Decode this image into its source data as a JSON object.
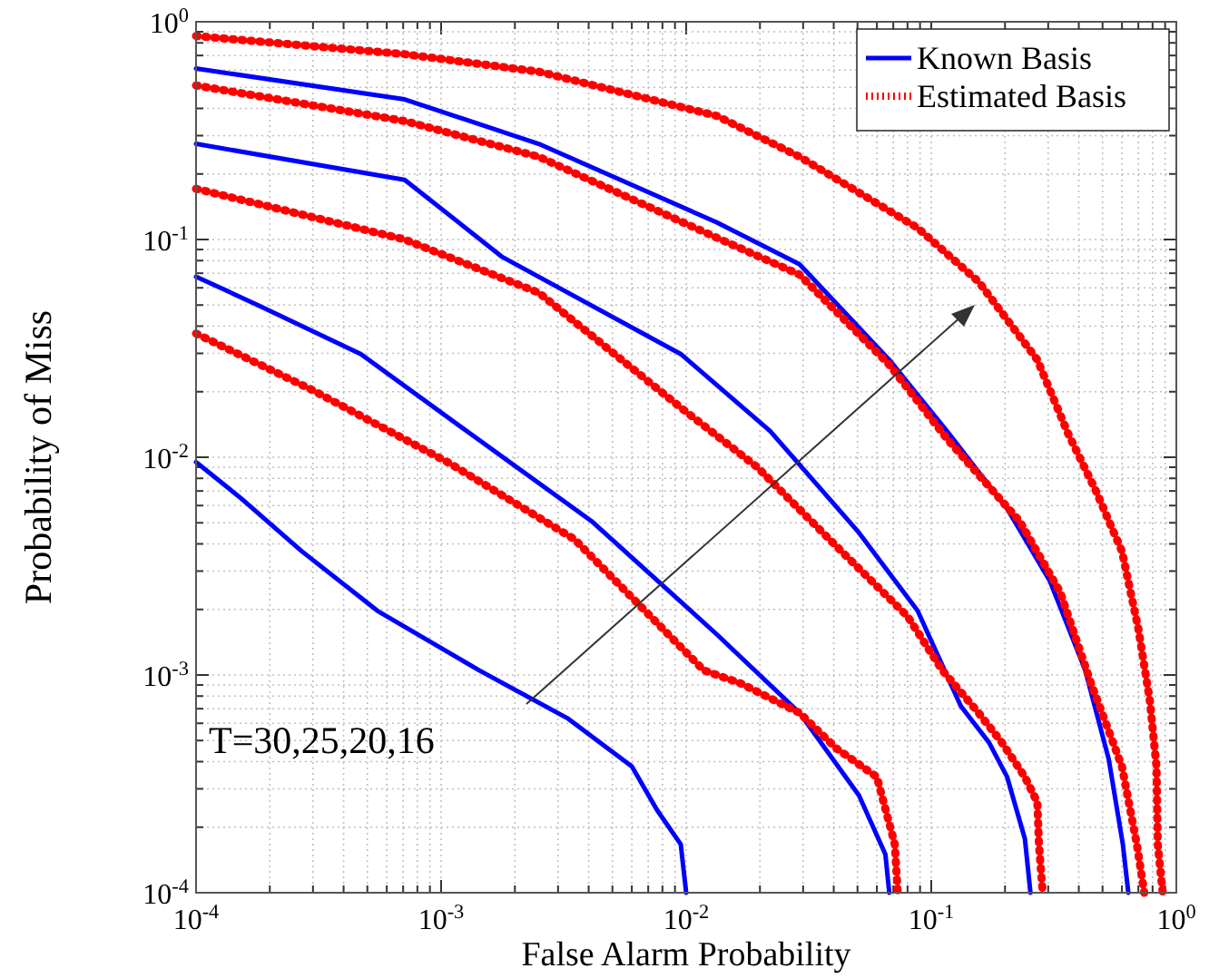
{
  "chart_data": {
    "type": "line",
    "xlabel": "False Alarm Probability",
    "ylabel": "Probability of Miss",
    "log": "xy",
    "grid": true,
    "legend": "top right",
    "xlim": [
      0.0001,
      1
    ],
    "ylim": [
      0.0001,
      1
    ],
    "xticks": [
      {
        "value": 0.0001,
        "label": "10$^{-4}$"
      },
      {
        "value": 0.0002,
        "label": null
      },
      {
        "value": 0.0003,
        "label": null
      },
      {
        "value": 0.0004,
        "label": null
      },
      {
        "value": 0.0005,
        "label": null
      },
      {
        "value": 0.0006,
        "label": null
      },
      {
        "value": 0.0007,
        "label": null
      },
      {
        "value": 0.0008,
        "label": null
      },
      {
        "value": 0.0009,
        "label": null
      },
      {
        "value": 0.001,
        "label": "10$^{-3}$"
      },
      {
        "value": 0.002,
        "label": null
      },
      {
        "value": 0.003,
        "label": null
      },
      {
        "value": 0.004,
        "label": null
      },
      {
        "value": 0.005,
        "label": null
      },
      {
        "value": 0.006,
        "label": null
      },
      {
        "value": 0.007,
        "label": null
      },
      {
        "value": 0.008,
        "label": null
      },
      {
        "value": 0.009,
        "label": null
      },
      {
        "value": 0.01,
        "label": "10$^{-2}$"
      },
      {
        "value": 0.02,
        "label": null
      },
      {
        "value": 0.03,
        "label": null
      },
      {
        "value": 0.04,
        "label": null
      },
      {
        "value": 0.05,
        "label": null
      },
      {
        "value": 0.06,
        "label": null
      },
      {
        "value": 0.07,
        "label": null
      },
      {
        "value": 0.08,
        "label": null
      },
      {
        "value": 0.09,
        "label": null
      },
      {
        "value": 0.1,
        "label": "10$^{-1}$"
      },
      {
        "value": 0.2,
        "label": null
      },
      {
        "value": 0.3,
        "label": null
      },
      {
        "value": 0.4,
        "label": null
      },
      {
        "value": 0.5,
        "label": null
      },
      {
        "value": 0.6,
        "label": null
      },
      {
        "value": 0.7,
        "label": null
      },
      {
        "value": 0.8,
        "label": null
      },
      {
        "value": 0.9,
        "label": null
      },
      {
        "value": 1,
        "label": "10$^{0}$"
      }
    ],
    "yticks": [
      {
        "value": 0.0001,
        "label": "10$^{-4}$"
      },
      {
        "value": 0.0002,
        "label": null
      },
      {
        "value": 0.0003,
        "label": null
      },
      {
        "value": 0.0004,
        "label": null
      },
      {
        "value": 0.0005,
        "label": null
      },
      {
        "value": 0.0006,
        "label": null
      },
      {
        "value": 0.0007,
        "label": null
      },
      {
        "value": 0.0008,
        "label": null
      },
      {
        "value": 0.0009,
        "label": null
      },
      {
        "value": 0.001,
        "label": "10$^{-3}$"
      },
      {
        "value": 0.002,
        "label": null
      },
      {
        "value": 0.003,
        "label": null
      },
      {
        "value": 0.004,
        "label": null
      },
      {
        "value": 0.005,
        "label": null
      },
      {
        "value": 0.006,
        "label": null
      },
      {
        "value": 0.007,
        "label": null
      },
      {
        "value": 0.008,
        "label": null
      },
      {
        "value": 0.009,
        "label": null
      },
      {
        "value": 0.01,
        "label": "10$^{-2}$"
      },
      {
        "value": 0.02,
        "label": null
      },
      {
        "value": 0.03,
        "label": null
      },
      {
        "value": 0.04,
        "label": null
      },
      {
        "value": 0.05,
        "label": null
      },
      {
        "value": 0.06,
        "label": null
      },
      {
        "value": 0.07,
        "label": null
      },
      {
        "value": 0.08,
        "label": null
      },
      {
        "value": 0.09,
        "label": null
      },
      {
        "value": 0.1,
        "label": "10$^{-1}$"
      },
      {
        "value": 0.2,
        "label": null
      },
      {
        "value": 0.3,
        "label": null
      },
      {
        "value": 0.4,
        "label": null
      },
      {
        "value": 0.5,
        "label": null
      },
      {
        "value": 0.6,
        "label": null
      },
      {
        "value": 0.7,
        "label": null
      },
      {
        "value": 0.8,
        "label": null
      },
      {
        "value": 0.9,
        "label": null
      },
      {
        "value": 1,
        "label": "10$^{0}$"
      }
    ],
    "annotations": [
      "T=30,25,20,16"
    ],
    "series": [
      {
        "name": "Known Basis",
        "color": "#0000ff",
        "line_style": "solid",
        "x": [
          0.0001,
          0.00071,
          0.0025,
          0.0133,
          0.029,
          0.0674,
          0.117,
          0.204,
          0.305,
          0.425,
          0.53,
          0.605,
          0.637
        ],
        "values": [
          0.61,
          0.44,
          0.275,
          0.12,
          0.077,
          0.028,
          0.013,
          0.0058,
          0.0027,
          0.00105,
          0.00041,
          0.000167,
          0.0001
        ]
      },
      {
        "name": "Estimated Basis",
        "color": "#ff0000",
        "line_style": "dotted",
        "x": [
          0.0001,
          0.00071,
          0.0025,
          0.0133,
          0.029,
          0.088,
          0.156,
          0.271,
          0.36,
          0.47,
          0.6,
          0.7,
          0.78,
          0.83,
          0.84,
          0.88
        ],
        "values": [
          0.86,
          0.71,
          0.59,
          0.37,
          0.24,
          0.113,
          0.064,
          0.028,
          0.013,
          0.007,
          0.0037,
          0.00163,
          0.00076,
          0.00038,
          0.000167,
          0.0001
        ]
      },
      {
        "color": "#ff0000",
        "line_style": "dotted",
        "x": [
          0.0001,
          0.00071,
          0.0025,
          0.0133,
          0.029,
          0.0674,
          0.117,
          0.229,
          0.336,
          0.448,
          0.6,
          0.69,
          0.74
        ],
        "values": [
          0.51,
          0.35,
          0.24,
          0.102,
          0.069,
          0.0266,
          0.012,
          0.0051,
          0.0024,
          0.00092,
          0.00038,
          0.000167,
          0.0001
        ]
      },
      {
        "color": "#0000ff",
        "line_style": "solid",
        "x": [
          0.0001,
          0.00071,
          0.00178,
          0.0095,
          0.022,
          0.0507,
          0.088,
          0.132,
          0.172,
          0.204,
          0.241,
          0.254
        ],
        "values": [
          0.275,
          0.188,
          0.083,
          0.0298,
          0.0132,
          0.0045,
          0.00197,
          0.00072,
          0.00049,
          0.00034,
          0.000177,
          0.0001
        ]
      },
      {
        "color": "#ff0000",
        "line_style": "dotted",
        "x": [
          0.0001,
          0.00071,
          0.0025,
          0.0095,
          0.0195,
          0.043,
          0.08,
          0.111,
          0.156,
          0.194,
          0.241,
          0.271,
          0.275,
          0.285
        ],
        "values": [
          0.171,
          0.1,
          0.057,
          0.0169,
          0.009,
          0.0037,
          0.00186,
          0.00105,
          0.00067,
          0.00049,
          0.00034,
          0.00026,
          0.000167,
          0.0001
        ]
      },
      {
        "color": "#0000ff",
        "line_style": "solid",
        "x": [
          0.0001,
          0.00018,
          0.00047,
          0.00127,
          0.0041,
          0.0133,
          0.029,
          0.0507,
          0.065,
          0.0674
        ],
        "values": [
          0.0675,
          0.0498,
          0.0298,
          0.0132,
          0.0051,
          0.00154,
          0.00067,
          0.00028,
          0.00015,
          0.0001
        ]
      },
      {
        "color": "#ff0000",
        "line_style": "dotted",
        "x": [
          0.0001,
          0.000297,
          0.00108,
          0.0035,
          0.0118,
          0.0165,
          0.029,
          0.041,
          0.06,
          0.071,
          0.073
        ],
        "values": [
          0.037,
          0.0204,
          0.0094,
          0.0042,
          0.00105,
          0.00092,
          0.00067,
          0.00046,
          0.00034,
          0.000167,
          0.0001
        ]
      },
      {
        "color": "#0000ff",
        "line_style": "solid",
        "x": [
          0.0001,
          0.000152,
          0.00027,
          0.00055,
          0.00143,
          0.0033,
          0.006,
          0.0076,
          0.0095,
          0.01
        ],
        "values": [
          0.0095,
          0.0065,
          0.0037,
          0.00197,
          0.00105,
          0.00063,
          0.00038,
          0.00024,
          0.000167,
          0.0001
        ]
      }
    ]
  }
}
